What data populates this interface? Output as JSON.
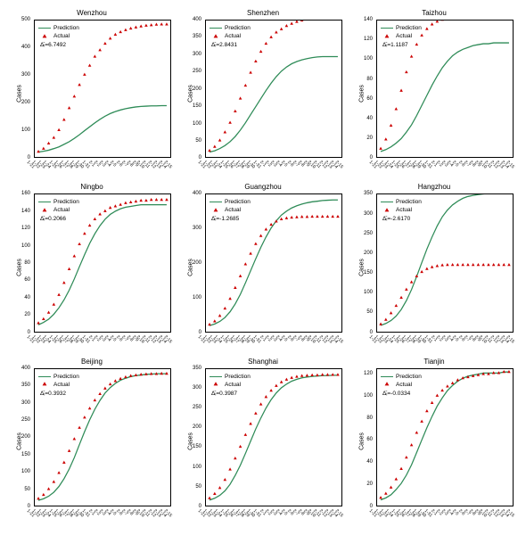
{
  "layout": {
    "rows": 3,
    "cols": 3
  },
  "colors": {
    "prediction": "#2e8b57",
    "actual": "#cc0000",
    "axis": "#000000",
    "background": "#ffffff"
  },
  "legend": {
    "prediction_label": "Prediction",
    "actual_label": "Actual"
  },
  "ylabel": "Cases",
  "x_categories": [
    "1-21",
    "1-22",
    "1-23",
    "1-24",
    "1-25",
    "1-26",
    "1-27",
    "1-28",
    "1-29",
    "1-30",
    "1-31",
    "2-1",
    "2-2",
    "2-3",
    "2-4",
    "2-5",
    "2-6",
    "2-7",
    "2-8",
    "2-9",
    "2-10",
    "2-11",
    "2-12",
    "2-13",
    "2-14",
    "2-15"
  ],
  "panels": [
    {
      "title": "Wenzhou",
      "annot": "Δ̄ᵢ=6.7492",
      "ylim": [
        0,
        500
      ],
      "ytick_step": 100,
      "prediction": [
        5,
        8,
        12,
        18,
        25,
        35,
        45,
        58,
        72,
        88,
        103,
        118,
        132,
        144,
        154,
        162,
        168,
        173,
        177,
        180,
        182,
        183,
        184,
        184,
        185,
        185
      ],
      "actual": [
        6,
        18,
        38,
        60,
        90,
        130,
        175,
        220,
        265,
        305,
        340,
        375,
        400,
        425,
        445,
        460,
        470,
        478,
        484,
        488,
        492,
        495,
        497,
        499,
        500,
        500
      ]
    },
    {
      "title": "Shenzhen",
      "annot": "Δ̄ᵢ=2.8431",
      "ylim": [
        0,
        400
      ],
      "ytick_step": 50,
      "prediction": [
        4,
        8,
        15,
        24,
        36,
        52,
        72,
        95,
        120,
        145,
        170,
        195,
        218,
        238,
        255,
        268,
        278,
        285,
        290,
        294,
        297,
        299,
        300,
        300,
        300,
        300
      ],
      "actual": [
        8,
        20,
        40,
        65,
        95,
        130,
        170,
        210,
        250,
        285,
        315,
        340,
        360,
        375,
        385,
        395,
        402,
        408,
        412,
        415,
        418,
        420,
        421,
        422,
        423,
        423
      ]
    },
    {
      "title": "Taizhou",
      "annot": "Δ̄ᵢ=1.1187",
      "ylim": [
        0,
        140
      ],
      "ytick_step": 20,
      "prediction": [
        2,
        4,
        7,
        11,
        16,
        23,
        31,
        41,
        52,
        63,
        74,
        84,
        93,
        100,
        106,
        110,
        113,
        115,
        117,
        118,
        119,
        119,
        120,
        120,
        120,
        120
      ],
      "actual": [
        5,
        15,
        30,
        48,
        68,
        88,
        105,
        118,
        128,
        135,
        140,
        143,
        145,
        146,
        147,
        147,
        147,
        147,
        147,
        147,
        147,
        147,
        147,
        147,
        147,
        147
      ]
    },
    {
      "title": "Ningbo",
      "annot": "Δ̄ᵢ=0.2066",
      "ylim": [
        0,
        160
      ],
      "ytick_step": 20,
      "prediction": [
        3,
        6,
        10,
        16,
        24,
        34,
        46,
        60,
        75,
        90,
        104,
        116,
        126,
        134,
        140,
        144,
        147,
        149,
        150,
        151,
        152,
        152,
        152,
        152,
        152,
        152
      ],
      "actual": [
        5,
        10,
        18,
        28,
        40,
        55,
        72,
        88,
        103,
        116,
        126,
        134,
        140,
        144,
        148,
        150,
        152,
        154,
        155,
        156,
        157,
        157,
        158,
        158,
        158,
        158
      ]
    },
    {
      "title": "Guangzhou",
      "annot": "Δ̄ᵢ=-1.2685",
      "ylim": [
        0,
        400
      ],
      "ytick_step": 100,
      "prediction": [
        5,
        10,
        18,
        30,
        48,
        72,
        102,
        138,
        175,
        212,
        248,
        280,
        308,
        330,
        348,
        360,
        370,
        377,
        382,
        386,
        389,
        391,
        393,
        394,
        395,
        395
      ],
      "actual": [
        8,
        18,
        35,
        58,
        88,
        122,
        158,
        195,
        228,
        258,
        283,
        303,
        318,
        328,
        335,
        338,
        340,
        341,
        342,
        342,
        343,
        343,
        343,
        343,
        343,
        343
      ]
    },
    {
      "title": "Hangzhou",
      "annot": "Δ̄ᵢ=-2.6170",
      "ylim": [
        0,
        350
      ],
      "ytick_step": 50,
      "prediction": [
        5,
        10,
        18,
        30,
        48,
        72,
        102,
        138,
        175,
        212,
        245,
        275,
        300,
        318,
        332,
        342,
        350,
        355,
        358,
        360,
        362,
        363,
        364,
        364,
        365,
        365
      ],
      "actual": [
        8,
        20,
        38,
        58,
        80,
        102,
        122,
        138,
        150,
        158,
        163,
        166,
        168,
        169,
        169,
        169,
        169,
        169,
        169,
        169,
        169,
        169,
        169,
        169,
        169,
        169
      ]
    },
    {
      "title": "Beijing",
      "annot": "Δ̄ᵢ=0.3932",
      "ylim": [
        0,
        400
      ],
      "ytick_step": 50,
      "prediction": [
        5,
        10,
        18,
        30,
        48,
        72,
        102,
        138,
        178,
        218,
        255,
        288,
        315,
        338,
        355,
        368,
        378,
        384,
        389,
        392,
        394,
        396,
        397,
        398,
        398,
        398
      ],
      "actual": [
        10,
        22,
        40,
        62,
        90,
        122,
        158,
        195,
        230,
        262,
        290,
        315,
        335,
        352,
        365,
        375,
        382,
        387,
        391,
        393,
        395,
        396,
        397,
        397,
        398,
        398
      ]
    },
    {
      "title": "Shanghai",
      "annot": "Δ̄ᵢ=0.3987",
      "ylim": [
        0,
        350
      ],
      "ytick_step": 50,
      "prediction": [
        5,
        10,
        18,
        30,
        48,
        72,
        100,
        132,
        165,
        198,
        228,
        255,
        278,
        296,
        310,
        320,
        328,
        333,
        337,
        339,
        341,
        342,
        343,
        343,
        344,
        344
      ],
      "actual": [
        10,
        22,
        38,
        60,
        88,
        118,
        150,
        182,
        212,
        240,
        265,
        285,
        302,
        315,
        325,
        332,
        337,
        340,
        342,
        343,
        344,
        344,
        345,
        345,
        345,
        345
      ]
    },
    {
      "title": "Tianjin",
      "annot": "Δ̄ᵢ=-0.0334",
      "ylim": [
        0,
        125
      ],
      "ytick_step": 20,
      "prediction": [
        2,
        4,
        7,
        12,
        18,
        26,
        36,
        48,
        60,
        72,
        83,
        93,
        101,
        108,
        113,
        117,
        120,
        122,
        123,
        124,
        125,
        125,
        125,
        125,
        126,
        126
      ],
      "actual": [
        4,
        8,
        14,
        22,
        32,
        43,
        55,
        67,
        78,
        88,
        96,
        103,
        108,
        112,
        115,
        118,
        120,
        121,
        122,
        123,
        124,
        124,
        125,
        125,
        126,
        126
      ]
    }
  ]
}
